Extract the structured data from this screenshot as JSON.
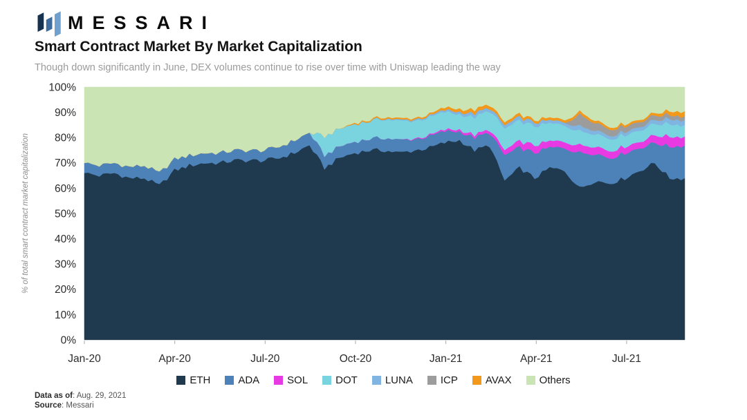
{
  "header": {
    "brand": "MESSARI",
    "title": "Smart Contract Market By Market Capitalization",
    "subtitle": "Though down significantly in June, DEX volumes continue to rise over time with Uniswap leading the way"
  },
  "logo_colors": [
    "#16324F",
    "#3E6C9E",
    "#6FA0CE"
  ],
  "footer": {
    "data_as_of_label": "Data as of",
    "data_as_of_value": ": Aug. 29, 2021",
    "source_label": "Source",
    "source_value": ": Messari"
  },
  "chart_data": {
    "type": "area",
    "stacked": true,
    "title": "Smart Contract Market By Market Capitalization",
    "ylabel": "% of total smart contract market capitalization",
    "ylim": [
      0,
      100
    ],
    "grid": false,
    "legend_position": "bottom",
    "ytick_values": [
      0,
      10,
      20,
      30,
      40,
      50,
      60,
      70,
      80,
      90,
      100
    ],
    "ytick_labels": [
      "0%",
      "10%",
      "20%",
      "30%",
      "40%",
      "50%",
      "60%",
      "70%",
      "80%",
      "90%",
      "100%"
    ],
    "x_span_months": 19.93,
    "x_start": "Jan-20",
    "x_end": "Aug-21",
    "xticks": [
      {
        "label": "Jan-20",
        "month": 0
      },
      {
        "label": "Apr-20",
        "month": 3
      },
      {
        "label": "Jul-20",
        "month": 6
      },
      {
        "label": "Oct-20",
        "month": 9
      },
      {
        "label": "Jan-21",
        "month": 12
      },
      {
        "label": "Apr-21",
        "month": 15
      },
      {
        "label": "Jul-21",
        "month": 18
      }
    ],
    "sample_interval": "half-month",
    "series": [
      {
        "name": "ETH",
        "color": "#1F394F",
        "values": [
          66,
          65,
          66,
          64,
          64,
          61,
          67,
          69,
          70,
          70,
          71,
          71,
          71,
          72,
          74,
          77,
          68,
          72,
          74,
          75,
          75,
          74,
          75,
          76,
          78,
          79,
          75,
          77,
          63,
          68,
          64,
          68,
          67,
          60,
          63,
          62,
          64,
          67,
          70,
          64,
          64
        ]
      },
      {
        "name": "ADA",
        "color": "#4D82B8",
        "values": [
          4,
          4,
          4,
          4.5,
          5,
          5,
          4.5,
          4,
          4,
          4,
          4,
          4,
          4,
          4.5,
          5,
          5,
          5,
          4.5,
          4.5,
          4.5,
          5,
          5,
          4.5,
          4.5,
          4.5,
          3.5,
          5,
          5,
          10,
          8,
          10,
          8,
          9,
          14,
          11,
          10,
          10,
          9,
          8,
          12.5,
          13
        ]
      },
      {
        "name": "SOL",
        "color": "#E83AE3",
        "values": [
          0,
          0,
          0,
          0,
          0,
          0,
          0,
          0,
          0,
          0,
          0,
          0,
          0,
          0,
          0,
          0,
          0,
          0,
          0,
          0,
          0,
          0,
          0.3,
          0.4,
          0.6,
          0.8,
          1,
          1.2,
          2,
          2.5,
          3,
          2.5,
          2.5,
          3,
          3,
          2.8,
          2.6,
          2.5,
          3,
          4,
          3.5
        ]
      },
      {
        "name": "DOT",
        "color": "#7AD4DF",
        "values": [
          0,
          0,
          0,
          0,
          0,
          0,
          0,
          0,
          0,
          0,
          0,
          0,
          0,
          0,
          0,
          0,
          7.5,
          7,
          7,
          7,
          7.5,
          7.5,
          7,
          7,
          7,
          6,
          7,
          7.5,
          8.5,
          8,
          7.5,
          7,
          6.5,
          5.5,
          5,
          4.8,
          4.6,
          4.5,
          4.5,
          5,
          4.5
        ]
      },
      {
        "name": "LUNA",
        "color": "#7FB5E0",
        "values": [
          0,
          0,
          0,
          0,
          0,
          0,
          0,
          0,
          0,
          0,
          0,
          0,
          0,
          0,
          0,
          0,
          0,
          0,
          0,
          0,
          0.3,
          0.4,
          0.5,
          0.6,
          0.8,
          1,
          1.5,
          1.2,
          1.3,
          1.5,
          1.5,
          1.2,
          1.2,
          2,
          1.5,
          1.3,
          1.3,
          1.4,
          1.5,
          2,
          2
        ]
      },
      {
        "name": "ICP",
        "color": "#9C9C9C",
        "values": [
          0,
          0,
          0,
          0,
          0,
          0,
          0,
          0,
          0,
          0,
          0,
          0,
          0,
          0,
          0,
          0,
          0,
          0,
          0,
          0,
          0,
          0,
          0,
          0,
          0,
          0,
          0,
          0,
          0,
          0,
          0,
          0,
          0,
          4.5,
          3,
          2.5,
          2.2,
          2,
          1.8,
          1.6,
          1.5
        ]
      },
      {
        "name": "AVAX",
        "color": "#F2991B",
        "values": [
          0,
          0,
          0,
          0,
          0,
          0,
          0,
          0,
          0,
          0,
          0,
          0,
          0,
          0,
          0,
          0,
          0,
          0,
          0.5,
          0.5,
          0.6,
          0.6,
          0.6,
          0.7,
          1,
          1.2,
          1.5,
          1.3,
          1.2,
          1.2,
          1,
          1,
          1,
          1.2,
          1,
          0.9,
          0.9,
          0.9,
          1,
          1.5,
          2
        ]
      },
      {
        "name": "Others",
        "color": "#CBE4B4",
        "values": [
          30,
          31,
          30,
          31.5,
          31,
          34,
          28.5,
          27,
          26,
          26,
          25,
          25,
          25,
          23.5,
          21,
          18,
          19.5,
          16.5,
          14,
          13,
          11.6,
          12.5,
          12.1,
          10.8,
          8.1,
          8.5,
          9,
          6.8,
          14,
          10.8,
          13,
          12.3,
          12.8,
          9.8,
          12.5,
          15.7,
          14.4,
          12.7,
          10.2,
          9.4,
          9.5
        ]
      }
    ]
  }
}
